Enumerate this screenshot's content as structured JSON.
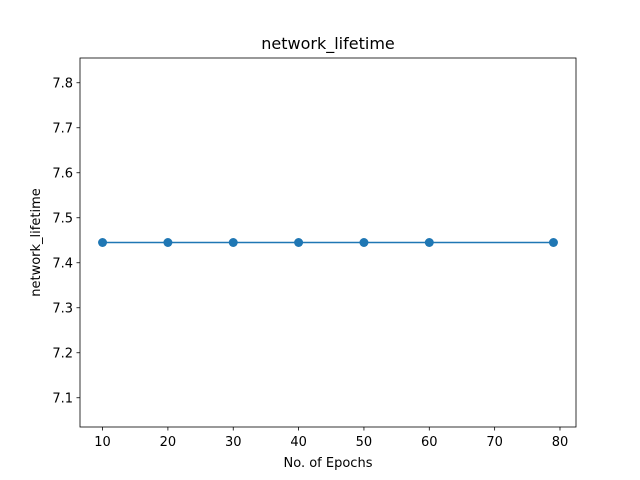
{
  "chart_data": {
    "type": "line",
    "title": "network_lifetime",
    "xlabel": "No. of Epochs",
    "ylabel": "network_lifetime",
    "xlim": [
      6.55,
      82.45
    ],
    "ylim": [
      7.035,
      7.855
    ],
    "xticks": [
      10,
      20,
      30,
      40,
      50,
      60,
      70,
      80
    ],
    "yticks": [
      7.1,
      7.2,
      7.3,
      7.4,
      7.5,
      7.6,
      7.7,
      7.8
    ],
    "grid": false,
    "series": [
      {
        "color": "#1f77b4",
        "marker": "circle",
        "x": [
          10,
          20,
          30,
          40,
          50,
          60,
          79
        ],
        "y": [
          7.445,
          7.445,
          7.445,
          7.445,
          7.445,
          7.445,
          7.445
        ]
      }
    ]
  }
}
